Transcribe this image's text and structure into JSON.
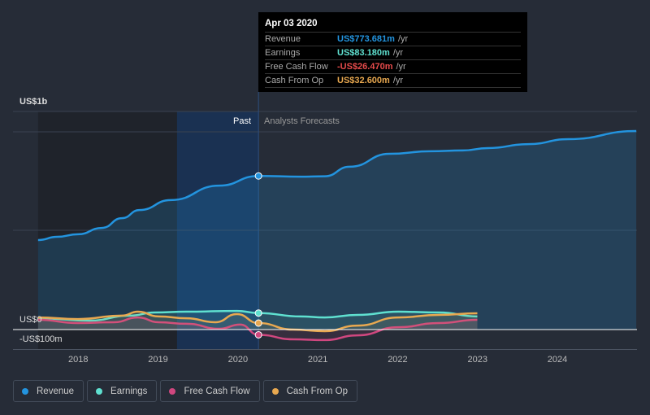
{
  "tooltip": {
    "date": "Apr 03 2020",
    "rows": [
      {
        "label": "Revenue",
        "value": "US$773.681m",
        "unit": "/yr",
        "color": "#2394df"
      },
      {
        "label": "Earnings",
        "value": "US$83.180m",
        "unit": "/yr",
        "color": "#5fe0d0"
      },
      {
        "label": "Free Cash Flow",
        "value": "-US$26.470m",
        "unit": "/yr",
        "color": "#e64b4b"
      },
      {
        "label": "Cash From Op",
        "value": "US$32.600m",
        "unit": "/yr",
        "color": "#e8a850"
      }
    ]
  },
  "chart_data": {
    "type": "line",
    "y_tick_labels": [
      "US$1b",
      "US$0",
      "-US$100m"
    ],
    "x_tick_labels": [
      "2018",
      "2019",
      "2020",
      "2021",
      "2022",
      "2023",
      "2024"
    ],
    "ylim": [
      -100,
      1000
    ],
    "xlim": [
      2017.25,
      2025
    ],
    "past_label": "Past",
    "forecast_label": "Analysts Forecasts",
    "divider_x": 2020.26,
    "series": [
      {
        "name": "Revenue",
        "color": "#2394df",
        "points": [
          [
            2017.5,
            451
          ],
          [
            2017.74,
            467
          ],
          [
            2018,
            480
          ],
          [
            2018.3,
            512
          ],
          [
            2018.55,
            561
          ],
          [
            2018.77,
            602
          ],
          [
            2019.16,
            652
          ],
          [
            2019.77,
            725
          ],
          [
            2020.26,
            773.681
          ],
          [
            2020.79,
            770
          ],
          [
            2021.09,
            772
          ],
          [
            2021.4,
            820
          ],
          [
            2021.9,
            885
          ],
          [
            2022.41,
            898
          ],
          [
            2022.82,
            902
          ],
          [
            2023.13,
            914
          ],
          [
            2023.64,
            934
          ],
          [
            2024.14,
            959
          ],
          [
            2024.99,
            1000
          ]
        ]
      },
      {
        "name": "Earnings",
        "color": "#5fe0d0",
        "points": [
          [
            2017.5,
            57
          ],
          [
            2018.14,
            45
          ],
          [
            2018.65,
            70
          ],
          [
            2018.96,
            86
          ],
          [
            2019.36,
            90
          ],
          [
            2019.99,
            94
          ],
          [
            2020.26,
            83.18
          ],
          [
            2020.79,
            66
          ],
          [
            2021.09,
            61
          ],
          [
            2021.5,
            74
          ],
          [
            2022.01,
            90
          ],
          [
            2022.52,
            86
          ],
          [
            2023,
            66
          ]
        ]
      },
      {
        "name": "Free Cash Flow",
        "color": "#d0477f",
        "points": [
          [
            2017.5,
            49
          ],
          [
            2018,
            33
          ],
          [
            2018.45,
            37
          ],
          [
            2018.75,
            61
          ],
          [
            2019.01,
            37
          ],
          [
            2019.36,
            29
          ],
          [
            2019.77,
            4
          ],
          [
            2020.03,
            25
          ],
          [
            2020.26,
            -26.47
          ],
          [
            2020.69,
            -49
          ],
          [
            2021.09,
            -53
          ],
          [
            2021.5,
            -29
          ],
          [
            2022.01,
            12
          ],
          [
            2022.52,
            33
          ],
          [
            2023,
            49
          ]
        ]
      },
      {
        "name": "Cash From Op",
        "color": "#e8a850",
        "points": [
          [
            2017.5,
            61
          ],
          [
            2018,
            53
          ],
          [
            2018.55,
            70
          ],
          [
            2018.75,
            90
          ],
          [
            2019.01,
            66
          ],
          [
            2019.36,
            57
          ],
          [
            2019.72,
            37
          ],
          [
            2019.99,
            78
          ],
          [
            2020.26,
            32.6
          ],
          [
            2020.69,
            0
          ],
          [
            2021.09,
            -8
          ],
          [
            2021.5,
            20
          ],
          [
            2022.01,
            61
          ],
          [
            2022.52,
            74
          ],
          [
            2023,
            82
          ]
        ]
      }
    ]
  },
  "legend": [
    "Revenue",
    "Earnings",
    "Free Cash Flow",
    "Cash From Op"
  ]
}
